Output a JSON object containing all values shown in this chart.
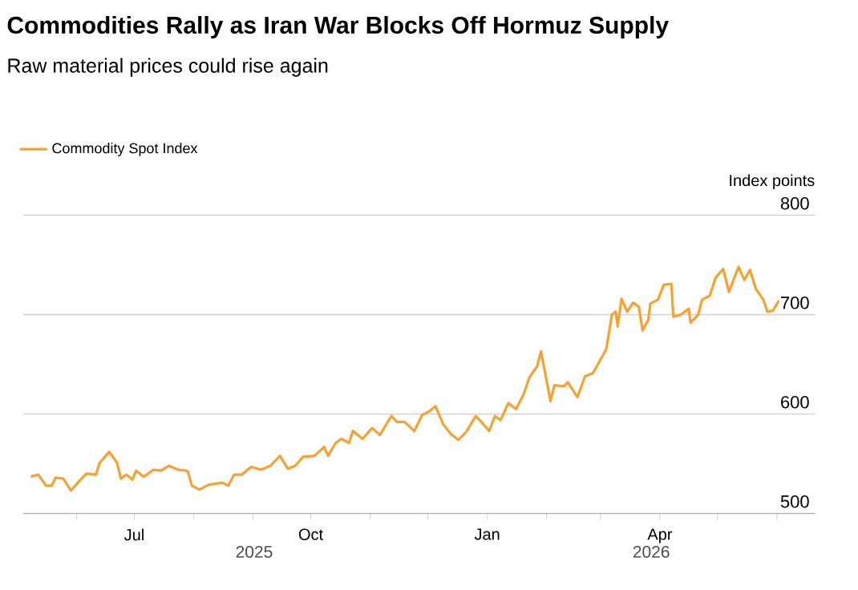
{
  "chart_data": {
    "type": "line",
    "title": "Commodities Rally as Iran War Blocks Off Hormuz Supply",
    "subtitle": "Raw material prices could rise again",
    "ylabel": "Index points",
    "x": [
      "2025-05-08",
      "2025-05-12",
      "2025-05-16",
      "2025-05-19",
      "2025-05-21",
      "2025-05-25",
      "2025-05-29",
      "2025-06-02",
      "2025-06-06",
      "2025-06-11",
      "2025-06-13",
      "2025-06-18",
      "2025-06-22",
      "2025-06-24",
      "2025-06-27",
      "2025-06-30",
      "2025-07-02",
      "2025-07-06",
      "2025-07-11",
      "2025-07-15",
      "2025-07-19",
      "2025-07-24",
      "2025-07-28",
      "2025-07-29",
      "2025-07-31",
      "2025-08-04",
      "2025-08-09",
      "2025-08-16",
      "2025-08-19",
      "2025-08-22",
      "2025-08-26",
      "2025-08-31",
      "2025-09-05",
      "2025-09-10",
      "2025-09-15",
      "2025-09-19",
      "2025-09-23",
      "2025-09-27",
      "2025-10-03",
      "2025-10-08",
      "2025-10-10",
      "2025-10-14",
      "2025-10-17",
      "2025-10-21",
      "2025-10-23",
      "2025-10-28",
      "2025-11-02",
      "2025-11-06",
      "2025-11-12",
      "2025-11-15",
      "2025-11-19",
      "2025-11-24",
      "2025-11-28",
      "2025-12-02",
      "2025-12-05",
      "2025-12-09",
      "2025-12-13",
      "2025-12-17",
      "2025-12-21",
      "2025-12-26",
      "2025-12-29",
      "2026-01-02",
      "2026-01-05",
      "2026-01-08",
      "2026-01-12",
      "2026-01-16",
      "2026-01-20",
      "2026-01-23",
      "2026-01-27",
      "2026-01-29",
      "2026-02-03",
      "2026-02-05",
      "2026-02-10",
      "2026-02-12",
      "2026-02-17",
      "2026-02-21",
      "2026-02-25",
      "2026-03-04",
      "2026-03-07",
      "2026-03-09",
      "2026-03-10",
      "2026-03-12",
      "2026-03-15",
      "2026-03-18",
      "2026-03-21",
      "2026-03-23",
      "2026-03-26",
      "2026-03-27",
      "2026-03-31",
      "2026-04-03",
      "2026-04-07",
      "2026-04-08",
      "2026-04-12",
      "2026-04-16",
      "2026-04-17",
      "2026-04-21",
      "2026-04-23",
      "2026-04-27",
      "2026-04-30",
      "2026-05-04",
      "2026-05-07",
      "2026-05-12",
      "2026-05-15",
      "2026-05-18",
      "2026-05-21",
      "2026-05-25",
      "2026-05-27",
      "2026-05-30",
      "2026-06-02"
    ],
    "series": [
      {
        "name": "Commodity Spot Index",
        "color": "#f7a133",
        "values": [
          537,
          539,
          528,
          528,
          536,
          535,
          523,
          532,
          540,
          539,
          551,
          562,
          551,
          535,
          539,
          534,
          543,
          537,
          544,
          543,
          548,
          544,
          543,
          542,
          528,
          524,
          529,
          531,
          528,
          539,
          539,
          547,
          544,
          548,
          558,
          545,
          548,
          557,
          558,
          567,
          558,
          571,
          575,
          571,
          583,
          575,
          586,
          579,
          598,
          592,
          592,
          583,
          599,
          603,
          608,
          590,
          580,
          574,
          582,
          598,
          592,
          583,
          598,
          594,
          611,
          605,
          620,
          637,
          648,
          663,
          613,
          629,
          628,
          632,
          617,
          638,
          641,
          665,
          700,
          703,
          688,
          716,
          703,
          712,
          708,
          684,
          695,
          711,
          715,
          730,
          731,
          698,
          700,
          706,
          692,
          700,
          715,
          719,
          737,
          746,
          723,
          748,
          735,
          745,
          726,
          715,
          703,
          704,
          714
        ]
      }
    ],
    "xlim": [
      "2025-05-04",
      "2026-06-21"
    ],
    "xticks": [
      {
        "value": "2025-06-01",
        "label": null
      },
      {
        "value": "2025-07-01",
        "label": "Jul"
      },
      {
        "value": "2025-08-01",
        "label": null
      },
      {
        "value": "2025-09-01",
        "label": null
      },
      {
        "value": "2025-10-01",
        "label": "Oct"
      },
      {
        "value": "2025-11-01",
        "label": null
      },
      {
        "value": "2025-12-01",
        "label": null
      },
      {
        "value": "2026-01-01",
        "label": "Jan"
      },
      {
        "value": "2026-02-01",
        "label": null
      },
      {
        "value": "2026-03-01",
        "label": null
      },
      {
        "value": "2026-04-01",
        "label": "Apr"
      },
      {
        "value": "2026-05-01",
        "label": null
      },
      {
        "value": "2026-06-01",
        "label": null
      }
    ],
    "ylim": [
      500,
      800
    ],
    "yticks": [
      500,
      600,
      700,
      800
    ],
    "annotations": [
      "2025",
      "2026"
    ],
    "grid": "y",
    "legend": "top left"
  }
}
